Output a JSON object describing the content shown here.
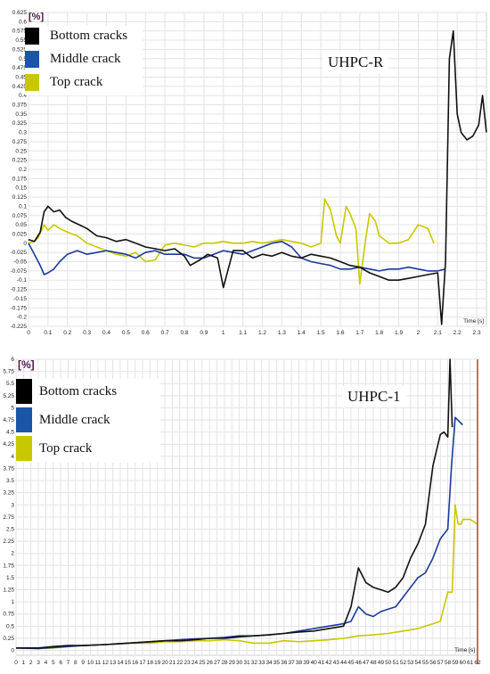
{
  "chart_data": [
    {
      "type": "line",
      "title": "UHPC-R",
      "unit_label": "[%]",
      "xlabel": "Time [s]",
      "xlim": [
        0,
        2.35
      ],
      "ylim": [
        -0.225,
        0.625
      ],
      "x_ticks": [
        "0",
        "0.1",
        "0.2",
        "0.3",
        "0.4",
        "0.5",
        "0.6",
        "0.7",
        "0.8",
        "0.9",
        "1",
        "1.1",
        "1.2",
        "1.3",
        "1.4",
        "1.5",
        "1.6",
        "1.7",
        "1.8",
        "1.9",
        "2",
        "2.1",
        "2.2",
        "2.3"
      ],
      "y_ticks": [
        "0.625",
        "0.6",
        "0.575",
        "0.55",
        "0.525",
        "0.5",
        "0.475",
        "0.45",
        "0.425",
        "0.4",
        "0.375",
        "0.35",
        "0.325",
        "0.3",
        "0.275",
        "0.25",
        "0.225",
        "0.2",
        "0.175",
        "0.15",
        "0.125",
        "0.1",
        "0.075",
        "0.05",
        "0.025",
        "0",
        "-0.025",
        "-0.05",
        "-0.075",
        "-0.1",
        "-0.125",
        "-0.15",
        "-0.175",
        "-0.2",
        "-0.225"
      ],
      "grid": true,
      "legend_position": "top-left",
      "series": [
        {
          "name": "Bottom cracks",
          "color": "#111111",
          "x": [
            0,
            0.03,
            0.06,
            0.08,
            0.1,
            0.13,
            0.16,
            0.19,
            0.22,
            0.26,
            0.3,
            0.35,
            0.4,
            0.45,
            0.5,
            0.55,
            0.6,
            0.65,
            0.7,
            0.75,
            0.8,
            0.83,
            0.88,
            0.92,
            0.97,
            1.0,
            1.05,
            1.1,
            1.15,
            1.2,
            1.25,
            1.3,
            1.35,
            1.4,
            1.45,
            1.5,
            1.55,
            1.6,
            1.65,
            1.7,
            1.75,
            1.8,
            1.85,
            1.9,
            1.95,
            2.0,
            2.05,
            2.1,
            2.12,
            2.14,
            2.16,
            2.18,
            2.2,
            2.22,
            2.25,
            2.28,
            2.31,
            2.33,
            2.35
          ],
          "y": [
            0.01,
            0.005,
            0.03,
            0.085,
            0.1,
            0.085,
            0.09,
            0.07,
            0.06,
            0.05,
            0.04,
            0.02,
            0.015,
            0.005,
            0.01,
            0.0,
            -0.01,
            -0.015,
            -0.02,
            -0.015,
            -0.035,
            -0.06,
            -0.045,
            -0.03,
            -0.04,
            -0.12,
            -0.02,
            -0.02,
            -0.04,
            -0.03,
            -0.035,
            -0.025,
            -0.035,
            -0.04,
            -0.03,
            -0.035,
            -0.04,
            -0.05,
            -0.06,
            -0.065,
            -0.08,
            -0.09,
            -0.1,
            -0.1,
            -0.095,
            -0.09,
            -0.085,
            -0.08,
            -0.22,
            -0.05,
            0.5,
            0.575,
            0.35,
            0.3,
            0.28,
            0.29,
            0.32,
            0.4,
            0.3
          ]
        },
        {
          "name": "Middle crack",
          "color": "#1a3a9c",
          "x": [
            0,
            0.03,
            0.06,
            0.08,
            0.1,
            0.13,
            0.16,
            0.2,
            0.25,
            0.3,
            0.35,
            0.4,
            0.45,
            0.5,
            0.55,
            0.6,
            0.65,
            0.7,
            0.75,
            0.8,
            0.85,
            0.9,
            0.95,
            1.0,
            1.05,
            1.1,
            1.15,
            1.2,
            1.25,
            1.3,
            1.35,
            1.4,
            1.45,
            1.5,
            1.55,
            1.6,
            1.65,
            1.7,
            1.75,
            1.8,
            1.85,
            1.9,
            1.95,
            2.0,
            2.05,
            2.1,
            2.14
          ],
          "y": [
            0.0,
            -0.03,
            -0.06,
            -0.085,
            -0.08,
            -0.07,
            -0.05,
            -0.03,
            -0.02,
            -0.03,
            -0.025,
            -0.02,
            -0.025,
            -0.03,
            -0.04,
            -0.025,
            -0.02,
            -0.03,
            -0.03,
            -0.03,
            -0.04,
            -0.04,
            -0.03,
            -0.02,
            -0.025,
            -0.03,
            -0.02,
            -0.01,
            0.0,
            0.005,
            -0.01,
            -0.04,
            -0.05,
            -0.055,
            -0.06,
            -0.07,
            -0.07,
            -0.065,
            -0.07,
            -0.075,
            -0.07,
            -0.07,
            -0.065,
            -0.07,
            -0.075,
            -0.075,
            -0.07
          ]
        },
        {
          "name": "Top crack",
          "color": "#c8c800",
          "x": [
            0,
            0.03,
            0.05,
            0.08,
            0.1,
            0.13,
            0.16,
            0.2,
            0.25,
            0.3,
            0.35,
            0.4,
            0.45,
            0.5,
            0.55,
            0.6,
            0.65,
            0.7,
            0.75,
            0.8,
            0.85,
            0.9,
            0.95,
            1.0,
            1.05,
            1.1,
            1.15,
            1.2,
            1.25,
            1.3,
            1.35,
            1.4,
            1.45,
            1.5,
            1.52,
            1.55,
            1.58,
            1.6,
            1.63,
            1.65,
            1.68,
            1.7,
            1.73,
            1.75,
            1.78,
            1.8,
            1.85,
            1.9,
            1.95,
            2.0,
            2.05,
            2.08
          ],
          "y": [
            0.0,
            0.005,
            0.015,
            0.05,
            0.035,
            0.05,
            0.04,
            0.03,
            0.02,
            0.0,
            -0.01,
            -0.02,
            -0.03,
            -0.035,
            -0.025,
            -0.05,
            -0.045,
            -0.005,
            0.0,
            -0.005,
            -0.01,
            0.0,
            0.0,
            0.005,
            0.0,
            0.0,
            0.005,
            0.0,
            0.005,
            0.01,
            0.005,
            0.0,
            -0.01,
            0.0,
            0.12,
            0.09,
            0.02,
            0.0,
            0.1,
            0.08,
            0.04,
            -0.11,
            0.01,
            0.08,
            0.06,
            0.02,
            0.0,
            0.0,
            0.01,
            0.05,
            0.04,
            0.0
          ]
        }
      ],
      "legend": [
        "Bottom cracks",
        "Middle crack",
        "Top crack"
      ]
    },
    {
      "type": "line",
      "title": "UHPC-1",
      "unit_label": "[%]",
      "xlabel": "Time [s]",
      "xlim": [
        0,
        62
      ],
      "ylim": [
        -0.1,
        6
      ],
      "x_ticks": [
        "0",
        "1",
        "2",
        "3",
        "4",
        "5",
        "6",
        "7",
        "8",
        "9",
        "10",
        "11",
        "12",
        "13",
        "14",
        "15",
        "16",
        "17",
        "18",
        "19",
        "20",
        "21",
        "22",
        "23",
        "24",
        "25",
        "26",
        "27",
        "28",
        "29",
        "30",
        "31",
        "32",
        "33",
        "34",
        "35",
        "36",
        "37",
        "38",
        "39",
        "40",
        "41",
        "42",
        "43",
        "44",
        "45",
        "46",
        "47",
        "48",
        "49",
        "50",
        "51",
        "52",
        "53",
        "54",
        "55",
        "56",
        "57",
        "58",
        "59",
        "60",
        "61",
        "62"
      ],
      "y_ticks": [
        "6",
        "5.75",
        "5.5",
        "5.25",
        "5",
        "4.75",
        "4.5",
        "4.25",
        "4",
        "3.75",
        "3.5",
        "3.25",
        "3",
        "2.75",
        "2.5",
        "2.25",
        "2",
        "1.75",
        "1.5",
        "1.25",
        "1",
        "0.75",
        "0.5",
        "0.25",
        "0"
      ],
      "grid": true,
      "legend_position": "top-left",
      "series": [
        {
          "name": "Bottom cracks",
          "color": "#111111",
          "x": [
            0,
            3,
            5,
            7,
            9,
            12,
            15,
            18,
            20,
            22,
            24,
            26,
            28,
            30,
            32,
            34,
            36,
            38,
            40,
            42,
            44,
            45,
            46,
            47,
            48,
            49,
            50,
            51,
            52,
            53,
            54,
            55,
            56,
            57,
            57.5,
            58,
            58.3,
            58.6
          ],
          "y": [
            0.05,
            0.05,
            0.08,
            0.1,
            0.1,
            0.12,
            0.15,
            0.18,
            0.2,
            0.2,
            0.22,
            0.25,
            0.25,
            0.28,
            0.3,
            0.32,
            0.35,
            0.38,
            0.4,
            0.45,
            0.5,
            0.9,
            1.7,
            1.4,
            1.3,
            1.25,
            1.2,
            1.3,
            1.5,
            1.9,
            2.2,
            2.6,
            3.8,
            4.45,
            4.5,
            4.4,
            6.0,
            4.6
          ]
        },
        {
          "name": "Middle crack",
          "color": "#1a3a9c",
          "x": [
            0,
            3,
            5,
            7,
            9,
            12,
            15,
            18,
            20,
            22,
            24,
            26,
            28,
            30,
            32,
            34,
            36,
            38,
            40,
            42,
            44,
            45,
            46,
            47,
            48,
            49,
            50,
            51,
            52,
            53,
            54,
            55,
            56,
            57,
            58,
            58.5,
            59,
            60
          ],
          "y": [
            0.05,
            0.04,
            0.06,
            0.08,
            0.1,
            0.12,
            0.15,
            0.18,
            0.2,
            0.22,
            0.24,
            0.25,
            0.27,
            0.3,
            0.3,
            0.32,
            0.35,
            0.4,
            0.45,
            0.5,
            0.55,
            0.6,
            0.9,
            0.75,
            0.7,
            0.8,
            0.85,
            0.9,
            1.1,
            1.3,
            1.5,
            1.6,
            1.9,
            2.3,
            2.5,
            3.8,
            4.8,
            4.65
          ]
        },
        {
          "name": "Top crack",
          "color": "#c8c800",
          "x": [
            0,
            3,
            5,
            7,
            9,
            12,
            15,
            18,
            20,
            22,
            24,
            26,
            28,
            30,
            32,
            34,
            36,
            38,
            40,
            42,
            44,
            46,
            48,
            50,
            52,
            54,
            55,
            56,
            57,
            58,
            58.6,
            59,
            59.4,
            59.8,
            60,
            61,
            62
          ],
          "y": [
            0.05,
            0.04,
            0.05,
            0.08,
            0.1,
            0.12,
            0.15,
            0.15,
            0.18,
            0.18,
            0.2,
            0.2,
            0.22,
            0.2,
            0.15,
            0.15,
            0.2,
            0.18,
            0.2,
            0.22,
            0.25,
            0.3,
            0.32,
            0.35,
            0.4,
            0.45,
            0.5,
            0.55,
            0.6,
            1.2,
            1.2,
            3.0,
            2.6,
            2.6,
            2.7,
            2.7,
            2.6
          ]
        }
      ],
      "legend": [
        "Bottom cracks",
        "Middle crack",
        "Top crack"
      ]
    }
  ]
}
